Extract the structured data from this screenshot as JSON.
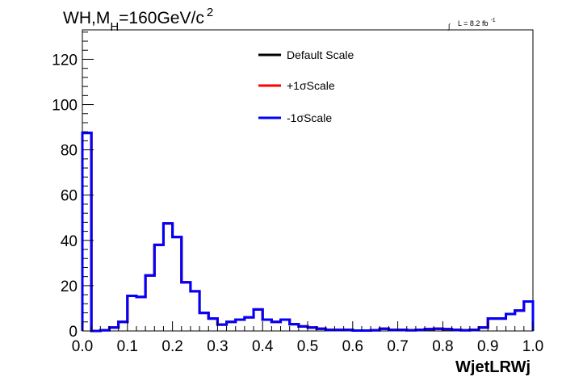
{
  "chart_data": {
    "type": "line",
    "title": "WH,M_H=160GeV/c^2",
    "title_parts": {
      "main": "WH,M",
      "subscript": "H",
      "rest": "=160GeV/c",
      "superscript": "2"
    },
    "annotation": {
      "text": "L = 8.2 fb",
      "superscript": "-1",
      "symbol": "∫"
    },
    "xlabel": "WjetLRWj",
    "ylabel": "",
    "xlim": [
      0.0,
      1.0
    ],
    "ylim": [
      0,
      133
    ],
    "xticks": [
      "0.0",
      "0.1",
      "0.2",
      "0.3",
      "0.4",
      "0.5",
      "0.6",
      "0.7",
      "0.8",
      "0.9",
      "1.0"
    ],
    "yticks": [
      "0",
      "20",
      "40",
      "60",
      "80",
      "100",
      "120"
    ],
    "legend_position": "top-center",
    "grid": false,
    "bins": 50,
    "series": [
      {
        "name": "Default Scale",
        "color": "#000000",
        "values": [
          87.5,
          0,
          0.3,
          1.5,
          4,
          15.5,
          15,
          24.5,
          38,
          47.5,
          41.5,
          21.5,
          17.5,
          8,
          5.5,
          2.8,
          4,
          5,
          6,
          9.5,
          5,
          4,
          5,
          3,
          2,
          1.5,
          1,
          0.5,
          0.5,
          0.5,
          0.2,
          0.2,
          0.3,
          1,
          0.5,
          0.5,
          0.3,
          0.5,
          0.8,
          1,
          0.8,
          0.5,
          0.3,
          0.5,
          1.5,
          5.5,
          5.5,
          7.5,
          9,
          13
        ]
      },
      {
        "name": "+1σScale",
        "color": "#ff0000",
        "values": [
          87.5,
          0,
          0.3,
          1.5,
          4,
          15.5,
          15,
          24.5,
          38,
          47.5,
          41.5,
          21.5,
          17.5,
          8,
          5.5,
          2.8,
          4,
          5,
          6,
          9.5,
          5,
          4,
          5,
          3,
          2,
          1.5,
          1,
          0.5,
          0.5,
          0.5,
          0.2,
          0.2,
          0.3,
          1,
          0.5,
          0.5,
          0.3,
          0.5,
          0.8,
          1,
          0.8,
          0.5,
          0.3,
          0.5,
          1.5,
          5.5,
          5.5,
          7.5,
          9,
          13
        ]
      },
      {
        "name": "-1σScale",
        "color": "#0000ff",
        "values": [
          87.5,
          0,
          0.3,
          1.5,
          4,
          15.5,
          15,
          24.5,
          38,
          47.5,
          41.5,
          21.5,
          17.5,
          8,
          5.5,
          2.8,
          4,
          5,
          6,
          9.5,
          5,
          4,
          5,
          3,
          2,
          1.5,
          1,
          0.5,
          0.5,
          0.5,
          0.2,
          0.2,
          0.3,
          1,
          0.5,
          0.5,
          0.3,
          0.5,
          0.8,
          1,
          0.8,
          0.5,
          0.3,
          0.5,
          1.5,
          5.5,
          5.5,
          7.5,
          9,
          13
        ]
      }
    ]
  }
}
